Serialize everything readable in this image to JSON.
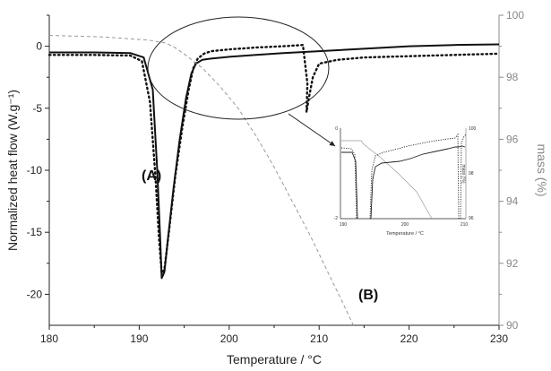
{
  "chart_data": {
    "type": "line",
    "xlabel": "Temperature / °C",
    "ylabel_left": "Normalized heat flow (W.g⁻¹)",
    "ylabel_right": "mass (%)",
    "xlim": [
      180,
      230
    ],
    "ylim_left": [
      -22.5,
      2.5
    ],
    "ylim_right": [
      90,
      100
    ],
    "x_ticks": [
      "180",
      "190",
      "200",
      "210",
      "220",
      "230"
    ],
    "y_ticks_left": [
      "0",
      "-5",
      "-10",
      "-15",
      "-20"
    ],
    "y_ticks_right": [
      "90",
      "92",
      "94",
      "96",
      "98",
      "100"
    ],
    "annotations": [
      "(A)",
      "(B)"
    ],
    "series": [
      {
        "style": "solid",
        "axis": "left",
        "x": [
          180,
          185,
          189,
          190.5,
          191.5,
          192.0,
          192.3,
          192.5,
          192.8,
          193.2,
          193.8,
          194.5,
          195.2,
          195.8,
          196.3,
          197,
          198,
          200,
          203,
          206,
          210,
          215,
          220,
          225,
          230
        ],
        "y": [
          -0.5,
          -0.5,
          -0.55,
          -0.9,
          -3.5,
          -10,
          -15,
          -18.7,
          -18.2,
          -15.5,
          -11.5,
          -7.5,
          -4.2,
          -2.2,
          -1.4,
          -1.1,
          -1.0,
          -0.85,
          -0.7,
          -0.55,
          -0.4,
          -0.2,
          0.0,
          0.1,
          0.15
        ]
      },
      {
        "style": "dotted",
        "axis": "left",
        "x": [
          180,
          185,
          189,
          190.3,
          191.2,
          191.8,
          192.2,
          192.5,
          192.8,
          193.3,
          194,
          194.8,
          195.5,
          196,
          196.5,
          197.2,
          198,
          200,
          203,
          206,
          208.2,
          208.7,
          208.6,
          208.9,
          209.3,
          210,
          212,
          215,
          220,
          225,
          230
        ],
        "y": [
          -0.7,
          -0.7,
          -0.75,
          -1.2,
          -4.5,
          -10.5,
          -15.5,
          -18.3,
          -18,
          -15,
          -10.5,
          -6.5,
          -3.5,
          -1.8,
          -1.0,
          -0.6,
          -0.4,
          -0.25,
          -0.1,
          0.0,
          0.1,
          -3.0,
          -5.3,
          -4.0,
          -2.5,
          -1.4,
          -1.1,
          -0.9,
          -0.8,
          -0.7,
          -0.6
        ]
      },
      {
        "style": "dashed",
        "axis": "right",
        "x": [
          180,
          186,
          191,
          193,
          194,
          195,
          197,
          199,
          201,
          203,
          205,
          207,
          209,
          211,
          212.5,
          213.8
        ],
        "y": [
          99.35,
          99.3,
          99.2,
          99.1,
          98.95,
          98.75,
          98.3,
          97.7,
          97.0,
          96.1,
          95.1,
          94.0,
          92.9,
          91.7,
          90.8,
          90.0
        ]
      }
    ],
    "inset": {
      "xlabel": "Temperature / °C",
      "ylabel_right": "mass (%)",
      "x_ticks": [
        "190",
        "200",
        "210"
      ],
      "y_ticks_left": [
        "0",
        "-2"
      ],
      "y_ticks_right": [
        "100",
        "98",
        "96"
      ]
    }
  }
}
